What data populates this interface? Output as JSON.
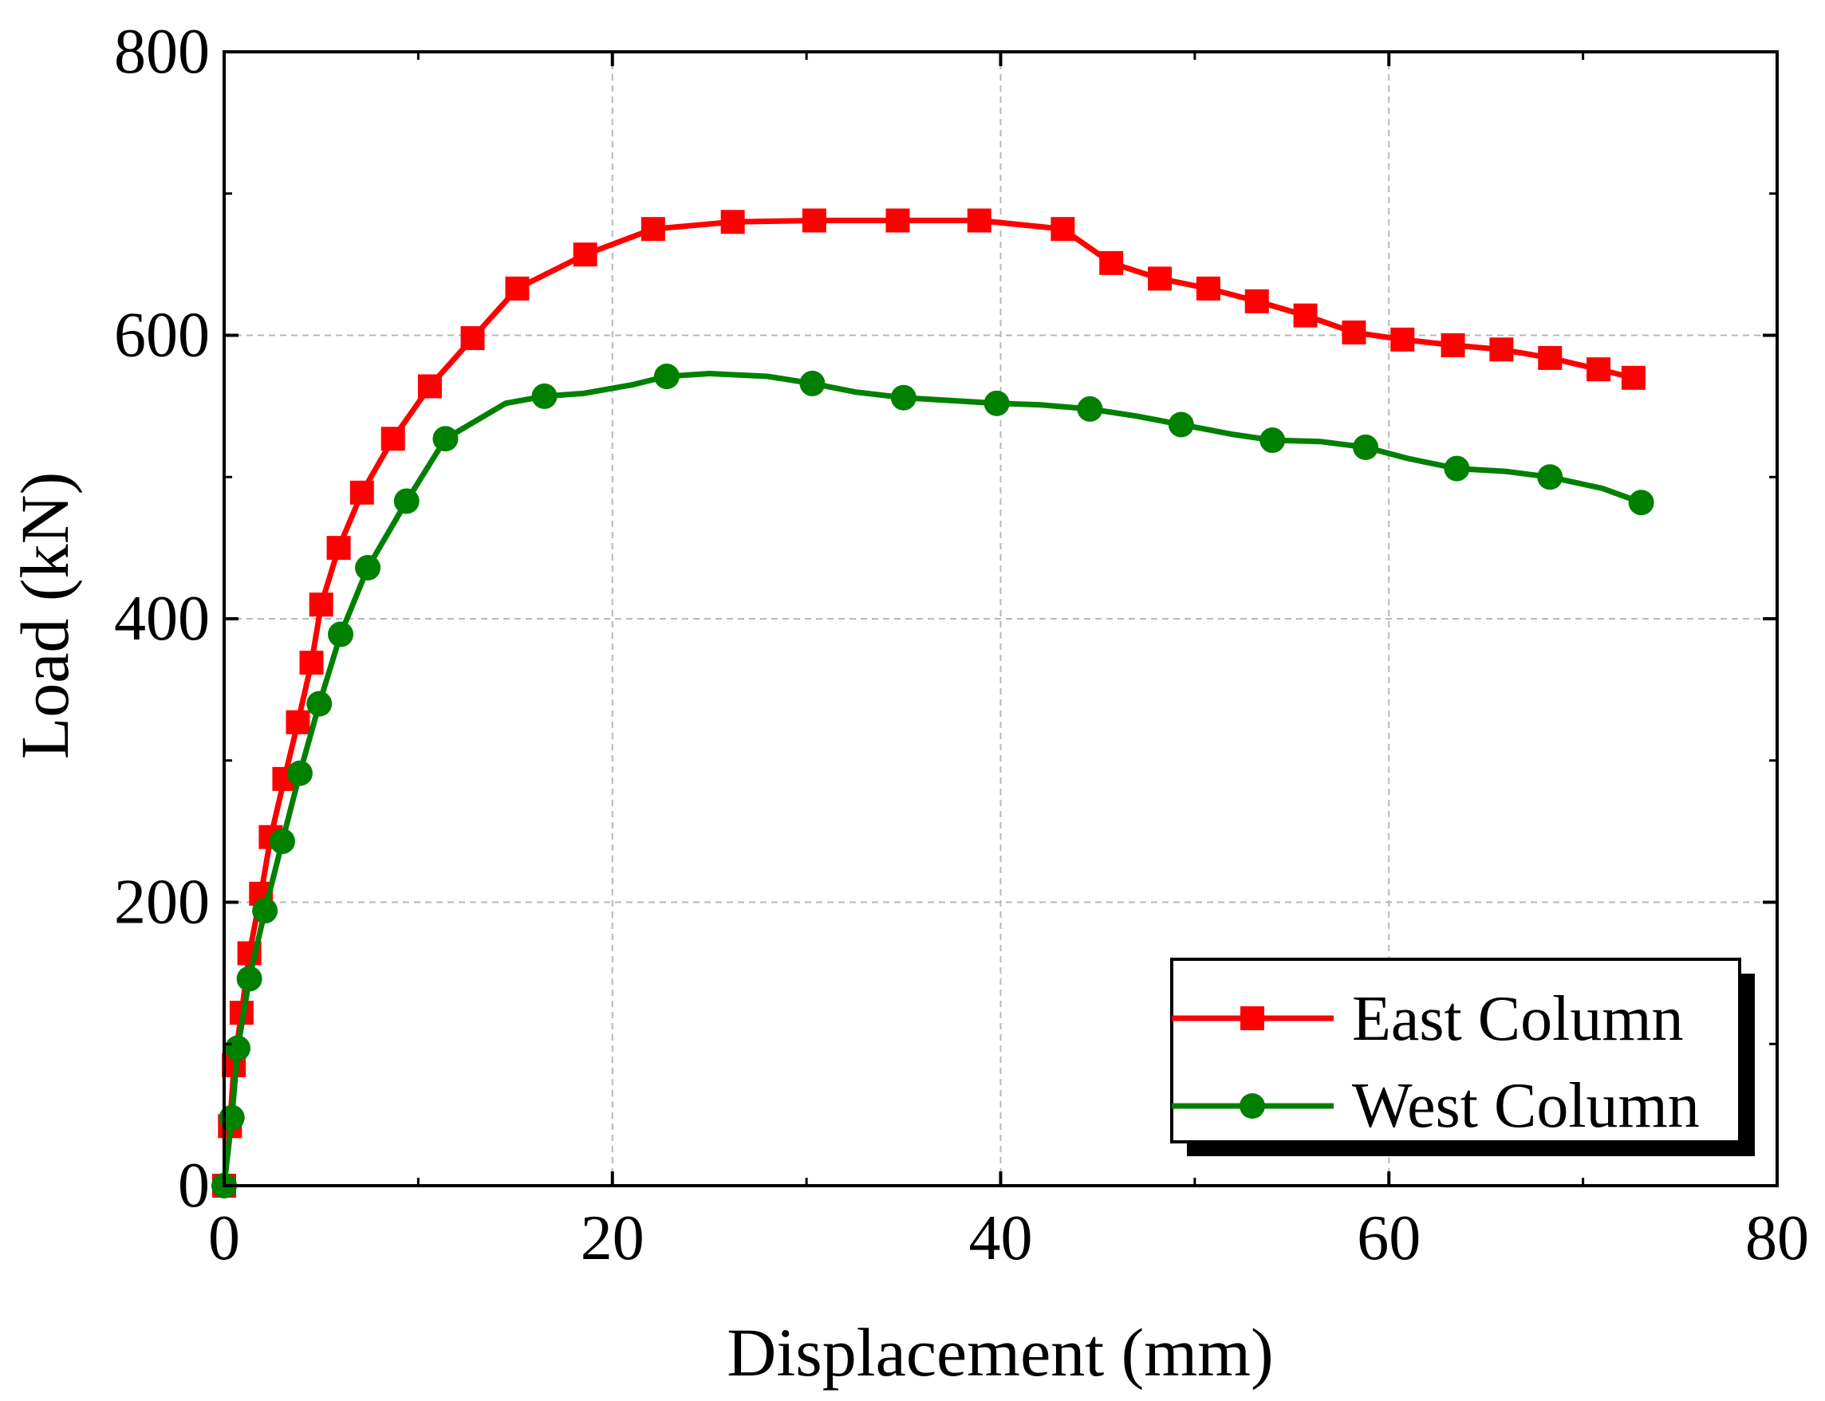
{
  "chart_data": {
    "type": "line",
    "title": "",
    "xlabel": "Displacement (mm)",
    "ylabel": "Load (kN)",
    "xlim": [
      0,
      80
    ],
    "ylim": [
      0,
      800
    ],
    "xticks": [
      0,
      20,
      40,
      60,
      80
    ],
    "yticks": [
      0,
      200,
      400,
      600,
      800
    ],
    "xtick_labels": [
      "0",
      "20",
      "40",
      "60",
      "80"
    ],
    "ytick_labels": [
      "0",
      "200",
      "400",
      "600",
      "800"
    ],
    "grid": true,
    "legend_position": "bottom-right",
    "series": [
      {
        "name": "East Column",
        "color": "#ff0000",
        "marker": "square",
        "x": [
          0.0,
          0.3,
          0.5,
          0.9,
          1.3,
          1.9,
          2.4,
          3.1,
          3.8,
          4.5,
          5.0,
          5.9,
          7.1,
          8.7,
          10.6,
          12.8,
          15.1,
          18.6,
          22.1,
          26.2,
          30.4,
          34.7,
          38.9,
          43.2,
          45.7,
          48.2,
          50.7,
          53.2,
          55.7,
          58.2,
          60.7,
          63.3,
          65.8,
          68.3,
          70.8,
          72.6
        ],
        "y": [
          0,
          42,
          85,
          122,
          164,
          206,
          246,
          287,
          327,
          369,
          410,
          450,
          489,
          527,
          564,
          598,
          633,
          657,
          675,
          680,
          681,
          681,
          681,
          675,
          651,
          640,
          633,
          624,
          614,
          602,
          597,
          593,
          590,
          584,
          576,
          570
        ],
        "line_x": [
          0.0,
          0.3,
          0.5,
          0.9,
          1.3,
          1.9,
          2.4,
          3.1,
          3.8,
          4.5,
          5.0,
          5.9,
          7.1,
          8.7,
          10.6,
          12.8,
          15.1,
          18.6,
          22.1,
          26.2,
          30.4,
          34.7,
          38.9,
          43.2,
          45.7,
          48.2,
          50.7,
          53.2,
          55.7,
          58.2,
          60.7,
          63.3,
          65.8,
          68.3,
          70.8,
          72.6
        ],
        "line_y": [
          0,
          42,
          85,
          122,
          164,
          206,
          246,
          287,
          327,
          369,
          410,
          450,
          489,
          527,
          564,
          598,
          633,
          657,
          675,
          680,
          681,
          681,
          681,
          675,
          651,
          640,
          633,
          624,
          614,
          602,
          597,
          593,
          590,
          584,
          576,
          570
        ]
      },
      {
        "name": "West Column",
        "color": "#008000",
        "marker": "circle",
        "x": [
          0.0,
          0.4,
          0.7,
          1.3,
          2.1,
          3.0,
          3.9,
          4.9,
          6.0,
          7.4,
          9.4,
          11.4,
          16.5,
          22.8,
          30.3,
          35.0,
          39.8,
          44.6,
          49.3,
          54.0,
          58.8,
          63.5,
          68.3,
          73.0
        ],
        "y": [
          0,
          48,
          97,
          146,
          194,
          243,
          291,
          340,
          389,
          436,
          483,
          527,
          557,
          571,
          566,
          556,
          552,
          548,
          537,
          526,
          521,
          506,
          500,
          482
        ],
        "line_x": [
          0.0,
          0.4,
          0.7,
          1.3,
          2.1,
          3.0,
          3.9,
          4.9,
          6.0,
          7.4,
          9.4,
          11.4,
          14.5,
          16.5,
          18.5,
          21.0,
          22.8,
          25.0,
          28.0,
          30.3,
          32.5,
          35.0,
          39.8,
          42.0,
          44.6,
          47.0,
          49.3,
          52.0,
          54.0,
          56.5,
          58.8,
          61.0,
          63.5,
          66.0,
          68.3,
          71.0,
          73.0
        ],
        "line_y": [
          0,
          48,
          97,
          146,
          194,
          243,
          291,
          340,
          389,
          436,
          483,
          527,
          552,
          557,
          559,
          565,
          571,
          573,
          571,
          566,
          560,
          556,
          552,
          551,
          548,
          543,
          537,
          530,
          526,
          525,
          521,
          513,
          506,
          504,
          500,
          492,
          482
        ]
      }
    ]
  }
}
